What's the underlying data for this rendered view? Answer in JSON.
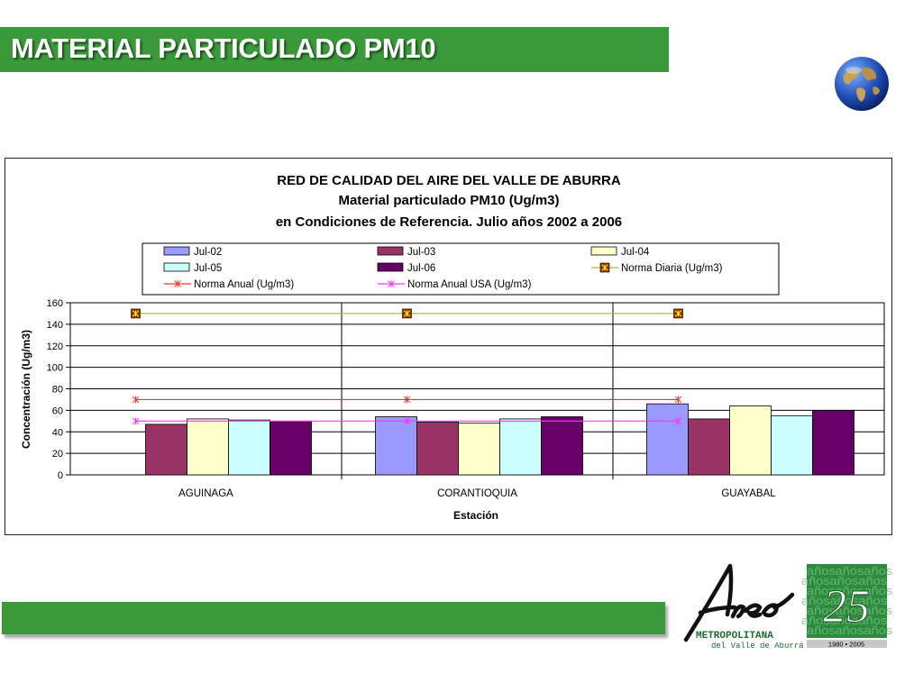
{
  "slide": {
    "title": "MATERIAL PARTICULADO PM10",
    "colors": {
      "green": "#3a9a3a"
    },
    "globe_icon": "globe-icon"
  },
  "logo": {
    "word": "Area",
    "line1": "METROPOLITANA",
    "line2": "del Valle de Aburrá",
    "badge_number": "25",
    "badge_pattern_word": "años",
    "badge_years": "1980 • 2005"
  },
  "chart_data": {
    "type": "bar",
    "title": "RED DE CALIDAD DEL AIRE DEL VALLE DE ABURRA",
    "subtitle": "Material particulado PM10 (Ug/m3)",
    "subtitle2": "en Condiciones de Referencia. Julio años 2002 a 2006",
    "xlabel": "Estación",
    "ylabel": "Concentración (Ug/m3)",
    "ylim": [
      0,
      160
    ],
    "yticks": [
      "0",
      "20",
      "40",
      "60",
      "80",
      "100",
      "120",
      "140",
      "160"
    ],
    "categories": [
      "AGUINAGA",
      "CORANTIOQUIA",
      "GUAYABAL"
    ],
    "grid": true,
    "legend_position": "top",
    "series": [
      {
        "name": "Jul-02",
        "values": [
          null,
          54,
          66
        ],
        "color": "#9999ff"
      },
      {
        "name": "Jul-03",
        "values": [
          47,
          49,
          52
        ],
        "color": "#993366"
      },
      {
        "name": "Jul-04",
        "values": [
          52,
          48,
          64
        ],
        "color": "#ffffcc"
      },
      {
        "name": "Jul-05",
        "values": [
          51,
          52,
          55
        ],
        "color": "#ccffff"
      },
      {
        "name": "Jul-06",
        "values": [
          50,
          54,
          60
        ],
        "color": "#660066"
      }
    ],
    "lines": [
      {
        "name": "Norma Diaria  (Ug/m3)",
        "value": 150,
        "color": "#99bb33",
        "marker_fill": "#993300",
        "marker_color": "#ffff00"
      },
      {
        "name": "Norma Anual (Ug/m3)",
        "value": 70,
        "color": "#ff3333"
      },
      {
        "name": "Norma Anual USA (Ug/m3)",
        "value": 50,
        "color": "#ff33ff"
      }
    ]
  }
}
